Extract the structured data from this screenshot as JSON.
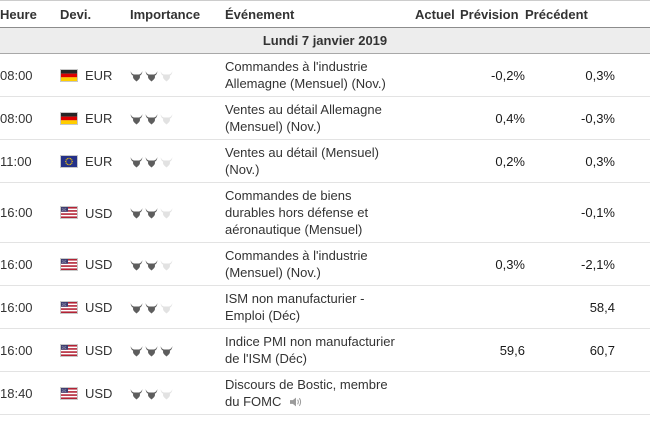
{
  "header": {
    "columns": [
      "Heure",
      "Devi.",
      "Importance",
      "Événement",
      "Actuel",
      "Prévision",
      "Précédent"
    ]
  },
  "date_banner": "Lundi 7 janvier 2019",
  "colors": {
    "banner_bg": "#ededed",
    "row_border": "#e3e3e3",
    "header_border": "#8c8c8c",
    "bull_active": "#5d5d5d",
    "bull_inactive": "#e2e2e2",
    "germany_flag": [
      "#262626",
      "#dd0000",
      "#ffce00"
    ],
    "eu_flag": [
      "#243188",
      "#ffcc00"
    ],
    "us_flag": [
      "#b22234",
      "#ffffff",
      "#3c3b6e"
    ]
  },
  "rows": [
    {
      "time": "08:00",
      "currency": "EUR",
      "flag": "germany-flag",
      "importance": 2,
      "event": "Commandes à l'industrie Allemagne (Mensuel) (Nov.)",
      "actual": "",
      "forecast": "-0,2%",
      "previous": "0,3%",
      "speech": false
    },
    {
      "time": "08:00",
      "currency": "EUR",
      "flag": "germany-flag",
      "importance": 2,
      "event": "Ventes au détail Allemagne (Mensuel) (Nov.)",
      "actual": "",
      "forecast": "0,4%",
      "previous": "-0,3%",
      "speech": false
    },
    {
      "time": "11:00",
      "currency": "EUR",
      "flag": "eu-flag",
      "importance": 2,
      "event": "Ventes au détail (Mensuel) (Nov.)",
      "actual": "",
      "forecast": "0,2%",
      "previous": "0,3%",
      "speech": false
    },
    {
      "time": "16:00",
      "currency": "USD",
      "flag": "us-flag",
      "importance": 2,
      "event": "Commandes de biens durables hors défense et aéronautique (Mensuel)",
      "actual": "",
      "forecast": "",
      "previous": "-0,1%",
      "speech": false
    },
    {
      "time": "16:00",
      "currency": "USD",
      "flag": "us-flag",
      "importance": 2,
      "event": "Commandes à l'industrie (Mensuel) (Nov.)",
      "actual": "",
      "forecast": "0,3%",
      "previous": "-2,1%",
      "speech": false
    },
    {
      "time": "16:00",
      "currency": "USD",
      "flag": "us-flag",
      "importance": 2,
      "event": "ISM non manufacturier - Emploi (Déc)",
      "actual": "",
      "forecast": "",
      "previous": "58,4",
      "speech": false
    },
    {
      "time": "16:00",
      "currency": "USD",
      "flag": "us-flag",
      "importance": 3,
      "event": "Indice PMI non manufacturier de l'ISM (Déc)",
      "actual": "",
      "forecast": "59,6",
      "previous": "60,7",
      "speech": false
    },
    {
      "time": "18:40",
      "currency": "USD",
      "flag": "us-flag",
      "importance": 2,
      "event": "Discours de Bostic, membre du FOMC",
      "actual": "",
      "forecast": "",
      "previous": "",
      "speech": true
    }
  ]
}
